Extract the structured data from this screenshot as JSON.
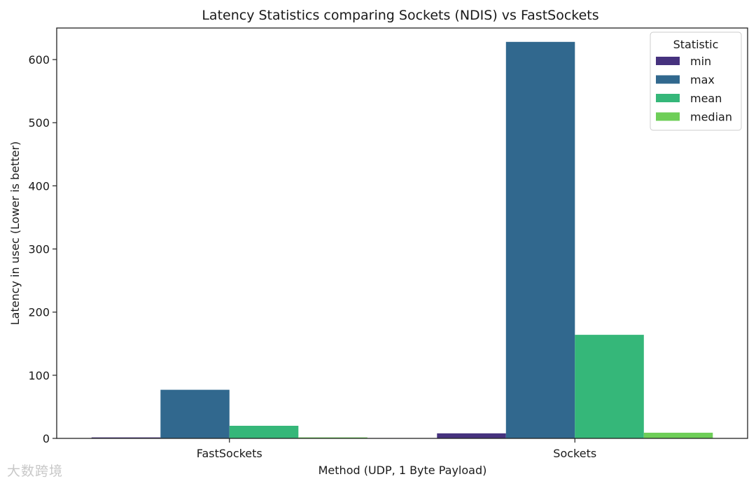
{
  "chart_data": {
    "type": "bar",
    "title": "Latency Statistics comparing Sockets (NDIS) vs FastSockets",
    "xlabel": "Method (UDP, 1 Byte Payload)",
    "ylabel": "Latency in usec (Lower is better)",
    "categories": [
      "FastSockets",
      "Sockets"
    ],
    "series": [
      {
        "name": "min",
        "color": "#46327e",
        "values": [
          1.5,
          8
        ]
      },
      {
        "name": "max",
        "color": "#31688e",
        "values": [
          77,
          628
        ]
      },
      {
        "name": "mean",
        "color": "#35b779",
        "values": [
          20,
          164
        ]
      },
      {
        "name": "median",
        "color": "#6ece58",
        "values": [
          1.5,
          9
        ]
      }
    ],
    "ylim": [
      0,
      650
    ],
    "yticks": [
      0,
      100,
      200,
      300,
      400,
      500,
      600
    ],
    "grid": false,
    "legend": {
      "title": "Statistic",
      "placement": "top-right"
    }
  },
  "watermark": "大数跨境"
}
